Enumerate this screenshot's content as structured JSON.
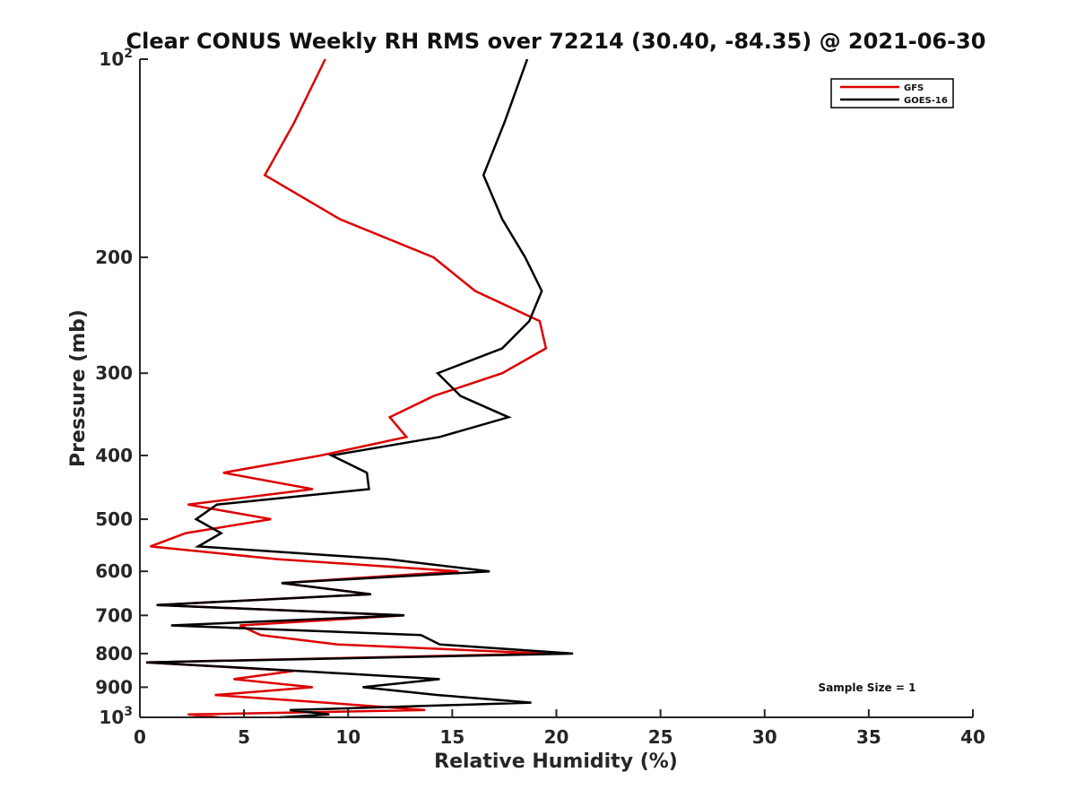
{
  "chart_data": {
    "type": "line",
    "title": "Clear CONUS Weekly RH RMS over 72214 (30.40, -84.35) @ 2021-06-30",
    "xlabel": "Relative Humidity (%)",
    "ylabel": "Pressure (mb)",
    "xlim": [
      0,
      40
    ],
    "ylim": [
      100,
      1000
    ],
    "yscale": "log",
    "yreversed": true,
    "grid": false,
    "legend_position": "top-right",
    "x_ticks": [
      0,
      5,
      10,
      15,
      20,
      25,
      30,
      35,
      40
    ],
    "x_tick_labels": [
      "0",
      "5",
      "10",
      "15",
      "20",
      "25",
      "30",
      "35",
      "40"
    ],
    "y_ticks": [
      100,
      200,
      300,
      400,
      500,
      600,
      700,
      800,
      900,
      1000
    ],
    "y_tick_labels": [
      {
        "base": "10",
        "exp": "2"
      },
      {
        "base": "200",
        "exp": ""
      },
      {
        "base": "300",
        "exp": ""
      },
      {
        "base": "400",
        "exp": ""
      },
      {
        "base": "500",
        "exp": ""
      },
      {
        "base": "600",
        "exp": ""
      },
      {
        "base": "700",
        "exp": ""
      },
      {
        "base": "800",
        "exp": ""
      },
      {
        "base": "900",
        "exp": ""
      },
      {
        "base": "10",
        "exp": "3"
      }
    ],
    "annotation": "Sample Size = 1",
    "series": [
      {
        "name": "GFS",
        "color": "#dd0000",
        "points": [
          [
            8.9,
            100
          ],
          [
            7.4,
            125
          ],
          [
            6.0,
            150
          ],
          [
            9.6,
            175
          ],
          [
            14.1,
            200
          ],
          [
            16.1,
            225
          ],
          [
            19.2,
            250
          ],
          [
            19.5,
            275
          ],
          [
            17.4,
            300
          ],
          [
            14.1,
            325
          ],
          [
            12.0,
            350
          ],
          [
            12.8,
            375
          ],
          [
            8.7,
            400
          ],
          [
            4.0,
            425
          ],
          [
            8.3,
            450
          ],
          [
            2.3,
            475
          ],
          [
            6.3,
            500
          ],
          [
            2.2,
            525
          ],
          [
            0.5,
            550
          ],
          [
            6.6,
            575
          ],
          [
            15.3,
            600
          ],
          [
            6.8,
            625
          ],
          [
            11.1,
            650
          ],
          [
            0.8,
            675
          ],
          [
            12.7,
            700
          ],
          [
            4.8,
            725
          ],
          [
            5.8,
            750
          ],
          [
            9.5,
            775
          ],
          [
            19.5,
            800
          ],
          [
            0.3,
            825
          ],
          [
            7.4,
            850
          ],
          [
            4.5,
            875
          ],
          [
            8.3,
            900
          ],
          [
            3.6,
            925
          ],
          [
            8.9,
            950
          ],
          [
            13.7,
            975
          ],
          [
            2.3,
            990
          ],
          [
            3.8,
            1000
          ]
        ]
      },
      {
        "name": "GOES-16",
        "color": "#000000",
        "points": [
          [
            18.6,
            100
          ],
          [
            17.5,
            125
          ],
          [
            16.5,
            150
          ],
          [
            17.4,
            175
          ],
          [
            18.5,
            200
          ],
          [
            19.3,
            225
          ],
          [
            18.7,
            250
          ],
          [
            17.4,
            275
          ],
          [
            14.3,
            300
          ],
          [
            15.4,
            325
          ],
          [
            17.7,
            350
          ],
          [
            14.4,
            375
          ],
          [
            9.2,
            400
          ],
          [
            10.9,
            425
          ],
          [
            11.0,
            450
          ],
          [
            3.7,
            475
          ],
          [
            2.7,
            500
          ],
          [
            3.9,
            525
          ],
          [
            2.8,
            550
          ],
          [
            11.9,
            575
          ],
          [
            16.8,
            600
          ],
          [
            6.8,
            625
          ],
          [
            11.1,
            650
          ],
          [
            0.8,
            675
          ],
          [
            12.7,
            700
          ],
          [
            1.5,
            725
          ],
          [
            13.5,
            750
          ],
          [
            14.4,
            775
          ],
          [
            20.8,
            800
          ],
          [
            0.3,
            825
          ],
          [
            7.6,
            850
          ],
          [
            14.4,
            875
          ],
          [
            10.7,
            900
          ],
          [
            14.3,
            925
          ],
          [
            18.8,
            950
          ],
          [
            7.2,
            975
          ],
          [
            9.1,
            990
          ],
          [
            6.7,
            1000
          ]
        ]
      }
    ]
  }
}
